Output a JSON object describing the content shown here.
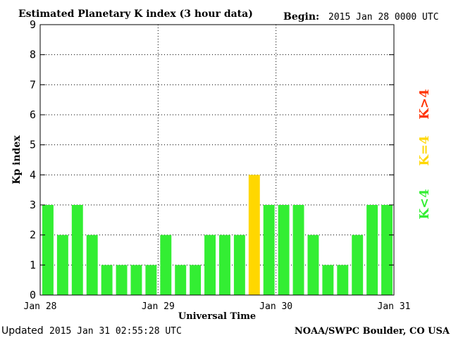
{
  "header": {
    "title": "Estimated Planetary K index (3 hour data)",
    "begin_label": "Begin:",
    "begin_value": "2015 Jan 28 0000 UTC"
  },
  "footer": {
    "updated_label": "Updated",
    "updated_value": "2015 Jan 31 02:55:28 UTC",
    "source": "NOAA/SWPC Boulder, CO USA"
  },
  "legend": [
    {
      "label": "K>4",
      "color": "#ff3300"
    },
    {
      "label": "K=4",
      "color": "#ffd700"
    },
    {
      "label": "K<4",
      "color": "#33ee33"
    }
  ],
  "chart_data": {
    "type": "bar",
    "title": "Estimated Planetary K index (3 hour data)",
    "xlabel": "Universal Time",
    "ylabel": "Kp index",
    "ylim": [
      0,
      9
    ],
    "yticks": [
      0,
      1,
      2,
      3,
      4,
      5,
      6,
      7,
      8,
      9
    ],
    "x_tick_labels": [
      "Jan 28",
      "Jan 29",
      "Jan 30",
      "Jan 31"
    ],
    "grid": true,
    "values": [
      3,
      2,
      3,
      2,
      1,
      1,
      1,
      1,
      2,
      1,
      1,
      2,
      2,
      2,
      4,
      3,
      3,
      3,
      2,
      1,
      1,
      2,
      3,
      3
    ],
    "colors": {
      "below_4": "#33ee33",
      "equal_4": "#ffd700",
      "above_4": "#ff3300"
    }
  }
}
